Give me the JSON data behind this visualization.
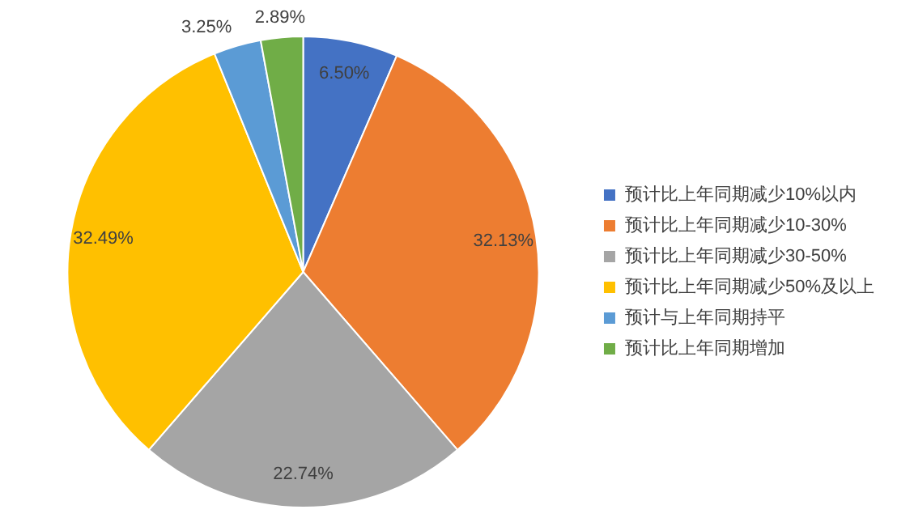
{
  "chart_data": {
    "type": "pie",
    "categories": [
      "预计比上年同期减少10%以内",
      "预计比上年同期减少10-30%",
      "预计比上年同期减少30-50%",
      "预计比上年同期减少50%及以上",
      "预计与上年同期持平",
      "预计比上年同期增加"
    ],
    "values": [
      6.5,
      32.13,
      22.74,
      32.49,
      3.25,
      2.89
    ],
    "value_labels": [
      "6.50%",
      "32.13%",
      "22.74%",
      "32.49%",
      "3.25%",
      "2.89%"
    ],
    "colors": [
      "#4472c4",
      "#ed7d31",
      "#a5a5a5",
      "#ffc000",
      "#5b9bd5",
      "#70ad47"
    ],
    "legend": "right"
  }
}
